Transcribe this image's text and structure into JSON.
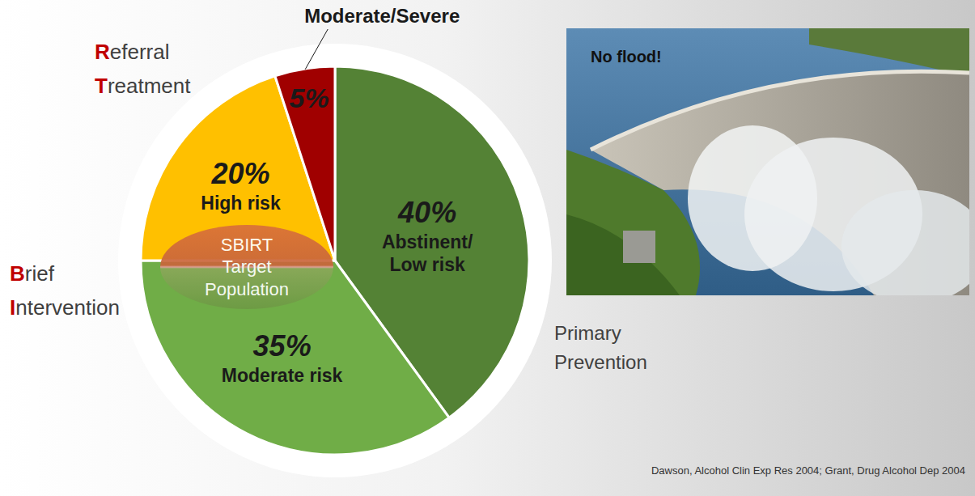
{
  "chart_data": {
    "type": "pie",
    "categories": [
      "Abstinent/Low risk",
      "Moderate risk",
      "High risk",
      "Moderate/Severe"
    ],
    "values": [
      40,
      35,
      20,
      5
    ],
    "value_labels": [
      "40%",
      "35%",
      "20%",
      "5%"
    ],
    "colors": [
      "#548235",
      "#70ad47",
      "#ffc000",
      "#a00000"
    ],
    "data_labels": true,
    "annotations": [
      "Referral Treatment",
      "Brief Intervention",
      "Primary Prevention",
      "SBIRT Target Population"
    ]
  },
  "image": {
    "caption": "No flood!"
  },
  "source": "Dawson, Alcohol Clin Exp Res 2004; Grant, Drug Alcohol Dep 2004"
}
